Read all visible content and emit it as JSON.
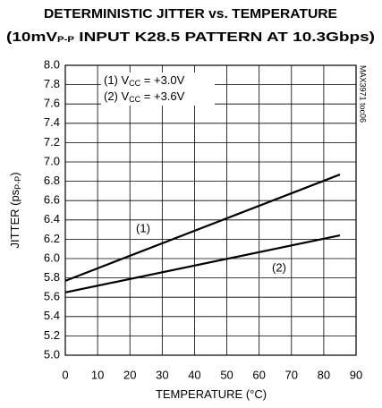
{
  "chart_data": {
    "type": "line",
    "title": [
      "DETERMINISTIC JITTER vs. TEMPERATURE"
    ],
    "subtitle": [
      "(10mV",
      "P-P",
      " INPUT K28.5 PATTERN AT 10.3Gbps)"
    ],
    "x_label": [
      "TEMPERATURE (°C)"
    ],
    "y_label": [
      "JITTER (ps",
      "P-P",
      ")"
    ],
    "side_note": "MAX3971 toc06",
    "legend": [
      [
        "(1) V",
        "CC",
        " = +3.0V"
      ],
      [
        "(2) V",
        "CC",
        " = +3.6V"
      ]
    ],
    "x": [
      0,
      85
    ],
    "series": [
      {
        "name": "(1)",
        "color": "#000000",
        "values": [
          5.77,
          6.87
        ]
      },
      {
        "name": "(2)",
        "color": "#000000",
        "values": [
          5.65,
          6.24
        ]
      }
    ],
    "xlim": [
      0,
      90
    ],
    "xticks": [
      0,
      10,
      20,
      30,
      40,
      50,
      60,
      70,
      80,
      90
    ],
    "ylim": [
      5.0,
      8.0
    ],
    "yticks": [
      {
        "value": 5.0,
        "label": "5.0"
      },
      {
        "value": 5.2,
        "label": "5.2"
      },
      {
        "value": 5.4,
        "label": "5.4"
      },
      {
        "value": 5.6,
        "label": "5.6"
      },
      {
        "value": 5.8,
        "label": "5.8"
      },
      {
        "value": 6.0,
        "label": "6.0"
      },
      {
        "value": 6.2,
        "label": "6.2"
      },
      {
        "value": 6.4,
        "label": "6.4"
      },
      {
        "value": 6.6,
        "label": "6.6"
      },
      {
        "value": 6.8,
        "label": "6.8"
      },
      {
        "value": 7.0,
        "label": "7.0"
      },
      {
        "value": 7.2,
        "label": "7.2"
      },
      {
        "value": 7.4,
        "label": "7.4"
      },
      {
        "value": 7.6,
        "label": "7.6"
      },
      {
        "value": 7.8,
        "label": "7.8"
      },
      {
        "value": 8.0,
        "label": "8.0"
      }
    ],
    "grid": true
  }
}
